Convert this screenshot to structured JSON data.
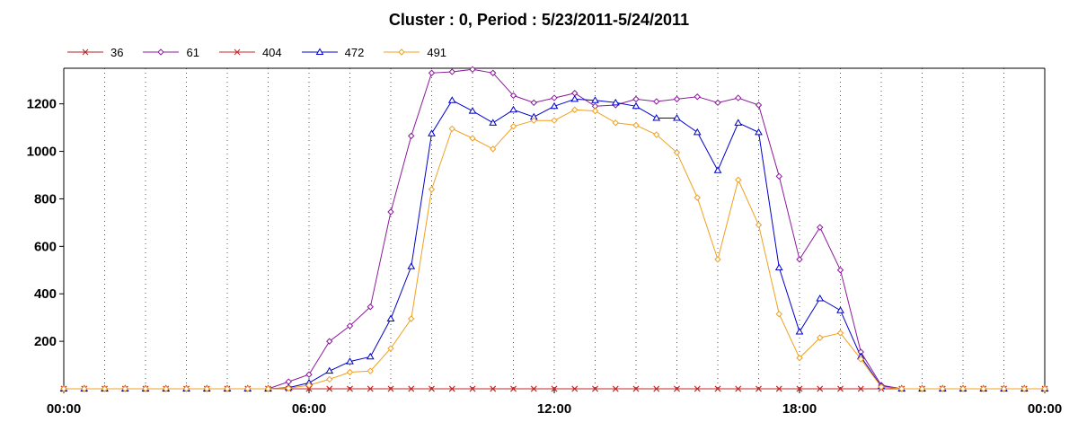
{
  "chart_data": {
    "type": "line",
    "title": "Cluster : 0, Period : 5/23/2011-5/24/2011",
    "xlabel": "",
    "ylabel": "",
    "x_tick_labels": [
      "00:00",
      "06:00",
      "12:00",
      "18:00",
      "00:00"
    ],
    "x_range_hours": [
      0,
      24
    ],
    "ylim": [
      0,
      1350
    ],
    "y_ticks": [
      200,
      400,
      600,
      800,
      1000,
      1200
    ],
    "grid": "vertical dotted",
    "legend_position": "top-left",
    "x_hours": [
      0,
      0.5,
      1,
      1.5,
      2,
      2.5,
      3,
      3.5,
      4,
      4.5,
      5,
      5.5,
      6,
      6.5,
      7,
      7.5,
      8,
      8.5,
      9,
      9.5,
      10,
      10.5,
      11,
      11.5,
      12,
      12.5,
      13,
      13.5,
      14,
      14.5,
      15,
      15.5,
      16,
      16.5,
      17,
      17.5,
      18,
      18.5,
      19,
      19.5,
      20,
      20.5,
      21,
      21.5,
      22,
      22.5,
      23,
      23.5,
      24
    ],
    "series": [
      {
        "name": "36",
        "color": "#b22222",
        "marker": "x",
        "values": [
          0,
          0,
          0,
          0,
          0,
          0,
          0,
          0,
          0,
          0,
          0,
          0,
          0,
          0,
          0,
          0,
          0,
          0,
          0,
          0,
          0,
          0,
          0,
          0,
          0,
          0,
          0,
          0,
          0,
          0,
          0,
          0,
          0,
          0,
          0,
          0,
          0,
          0,
          0,
          0,
          0,
          0,
          0,
          0,
          0,
          0,
          0,
          0,
          0
        ]
      },
      {
        "name": "61",
        "color": "#8b1a9b",
        "marker": "diamond",
        "values": [
          0,
          0,
          0,
          0,
          0,
          0,
          0,
          0,
          0,
          0,
          0,
          30,
          60,
          200,
          265,
          345,
          745,
          1065,
          1330,
          1335,
          1345,
          1330,
          1235,
          1205,
          1225,
          1245,
          1190,
          1195,
          1220,
          1210,
          1220,
          1230,
          1205,
          1225,
          1195,
          895,
          545,
          680,
          500,
          155,
          15,
          0,
          0,
          0,
          0,
          0,
          0,
          0,
          0
        ]
      },
      {
        "name": "404",
        "color": "#c62828",
        "marker": "x",
        "values": [
          0,
          0,
          0,
          0,
          0,
          0,
          0,
          0,
          0,
          0,
          0,
          0,
          0,
          0,
          0,
          0,
          0,
          0,
          0,
          0,
          0,
          0,
          0,
          0,
          0,
          0,
          0,
          0,
          0,
          0,
          0,
          0,
          0,
          0,
          0,
          0,
          0,
          0,
          0,
          0,
          0,
          0,
          0,
          0,
          0,
          0,
          0,
          0,
          0
        ]
      },
      {
        "name": "472",
        "color": "#0000cc",
        "marker": "triangle",
        "values": [
          0,
          0,
          0,
          0,
          0,
          0,
          0,
          0,
          0,
          0,
          0,
          5,
          25,
          75,
          115,
          135,
          295,
          515,
          1075,
          1215,
          1170,
          1120,
          1175,
          1145,
          1190,
          1220,
          1215,
          1205,
          1190,
          1140,
          1140,
          1080,
          920,
          1120,
          1080,
          510,
          240,
          380,
          330,
          135,
          10,
          0,
          0,
          0,
          0,
          0,
          0,
          0,
          0
        ]
      },
      {
        "name": "491",
        "color": "#f0a020",
        "marker": "diamond",
        "values": [
          0,
          0,
          0,
          0,
          0,
          0,
          0,
          0,
          0,
          0,
          0,
          2,
          15,
          40,
          70,
          75,
          170,
          295,
          840,
          1095,
          1055,
          1010,
          1105,
          1130,
          1130,
          1175,
          1170,
          1120,
          1110,
          1070,
          995,
          805,
          545,
          880,
          690,
          315,
          130,
          215,
          235,
          125,
          8,
          0,
          0,
          0,
          0,
          0,
          0,
          0,
          0
        ]
      }
    ]
  }
}
